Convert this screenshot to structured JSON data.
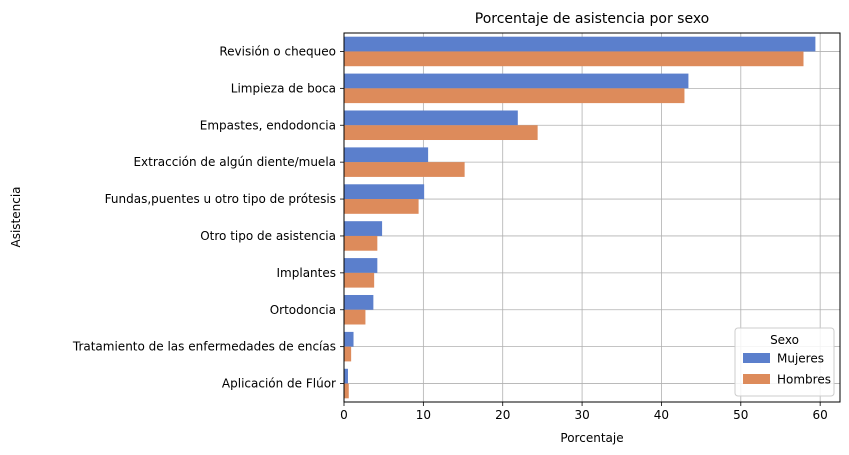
{
  "chart_data": {
    "type": "bar",
    "orientation": "horizontal",
    "title": "Porcentaje de asistencia por sexo",
    "xlabel": "Porcentaje",
    "ylabel": "Asistencia",
    "xlim": [
      0,
      62.5
    ],
    "xticks": [
      0,
      10,
      20,
      30,
      40,
      50,
      60
    ],
    "grid": true,
    "legend": {
      "title": "Sexo",
      "placement": "lower-right"
    },
    "categories": [
      "Revisión o chequeo",
      "Limpieza de boca",
      "Empastes, endodoncia",
      "Extracción de algún diente/muela",
      "Fundas,puentes u otro tipo de prótesis",
      "Otro tipo de asistencia",
      "Implantes",
      "Ortodoncia",
      "Tratamiento de las enfermedades de encías",
      "Aplicación de Flúor"
    ],
    "series": [
      {
        "name": "Mujeres",
        "color": "#5b7fcc",
        "values": [
          59.4,
          43.4,
          21.9,
          10.6,
          10.1,
          4.8,
          4.2,
          3.7,
          1.2,
          0.5
        ]
      },
      {
        "name": "Hombres",
        "color": "#dd8b5b",
        "values": [
          57.9,
          42.9,
          24.4,
          15.2,
          9.4,
          4.2,
          3.8,
          2.7,
          0.9,
          0.6
        ]
      }
    ]
  }
}
